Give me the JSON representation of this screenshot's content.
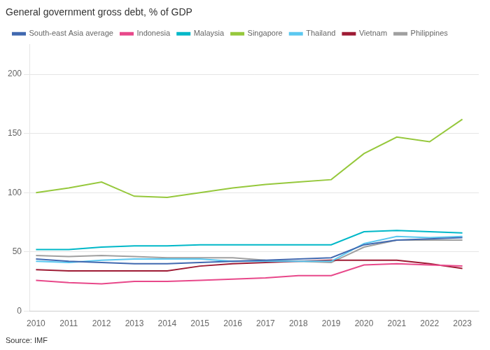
{
  "chart_data": {
    "type": "line",
    "title": "General government gross debt, % of GDP",
    "annotations": [
      "Source: IMF"
    ],
    "x": [
      2010,
      2011,
      2012,
      2013,
      2014,
      2015,
      2016,
      2017,
      2018,
      2019,
      2020,
      2021,
      2022,
      2023
    ],
    "xlim": [
      2009.8,
      2023.5
    ],
    "xticks": [
      2010,
      2011,
      2012,
      2013,
      2014,
      2015,
      2016,
      2017,
      2018,
      2019,
      2020,
      2021,
      2022,
      2023
    ],
    "ylim": [
      0,
      225
    ],
    "yticks": [
      0,
      50,
      100,
      150,
      200
    ],
    "grid": "y",
    "legend": "top",
    "series": [
      {
        "name": "South-east Asia average",
        "color": "#4169b0",
        "values": [
          44,
          42,
          41,
          40,
          40,
          41,
          42,
          43,
          44,
          45,
          56,
          60,
          61,
          62
        ]
      },
      {
        "name": "Indonesia",
        "color": "#e8488a",
        "values": [
          26,
          24,
          23,
          25,
          25,
          26,
          27,
          28,
          30,
          30,
          39,
          40,
          39,
          38
        ]
      },
      {
        "name": "Malaysia",
        "color": "#00b8c8",
        "values": [
          52,
          52,
          54,
          55,
          55,
          56,
          56,
          56,
          56,
          56,
          67,
          68,
          67,
          66
        ]
      },
      {
        "name": "Singapore",
        "color": "#96c83c",
        "values": [
          100,
          104,
          109,
          97,
          96,
          100,
          104,
          107,
          109,
          111,
          133,
          147,
          143,
          162
        ]
      },
      {
        "name": "Thailand",
        "color": "#5bc8f0",
        "values": [
          42,
          41,
          43,
          44,
          44,
          44,
          42,
          42,
          42,
          42,
          57,
          63,
          62,
          63
        ]
      },
      {
        "name": "Vietnam",
        "color": "#9e1b34",
        "values": [
          35,
          34,
          34,
          34,
          34,
          38,
          40,
          41,
          42,
          43,
          43,
          43,
          40,
          36
        ]
      },
      {
        "name": "Philippines",
        "color": "#a0a0a0",
        "values": [
          47,
          46,
          47,
          46,
          45,
          45,
          45,
          43,
          42,
          41,
          54,
          60,
          60,
          60
        ]
      }
    ]
  }
}
